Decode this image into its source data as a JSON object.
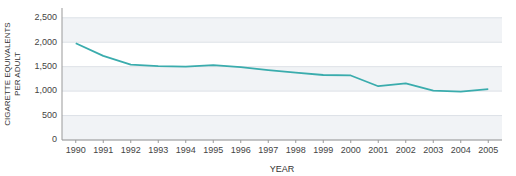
{
  "chart_data": {
    "type": "line",
    "x": [
      1990,
      1991,
      1992,
      1993,
      1994,
      1995,
      1996,
      1997,
      1998,
      1999,
      2000,
      2001,
      2002,
      2003,
      2004,
      2005
    ],
    "values": [
      1980,
      1720,
      1540,
      1510,
      1500,
      1530,
      1490,
      1430,
      1380,
      1330,
      1320,
      1100,
      1160,
      1010,
      990,
      1040
    ],
    "color": "#3aacad",
    "xlabel": "YEAR",
    "ylabel": "CIGARETTE EQUIVALENTS\nPER ADULT",
    "xlim": [
      1989.5,
      2005.5
    ],
    "xticks": [
      1990,
      1991,
      1992,
      1993,
      1994,
      1995,
      1996,
      1997,
      1998,
      1999,
      2000,
      2001,
      2002,
      2003,
      2004,
      2005
    ],
    "ylim": [
      0,
      2700
    ],
    "yticks": [
      0,
      500,
      {
        "value": 1000,
        "label": "1,000"
      },
      {
        "value": 1500,
        "label": "1,500"
      },
      {
        "value": 2000,
        "label": "2,000"
      },
      {
        "value": 2500,
        "label": "2,500"
      }
    ],
    "grid": true
  }
}
